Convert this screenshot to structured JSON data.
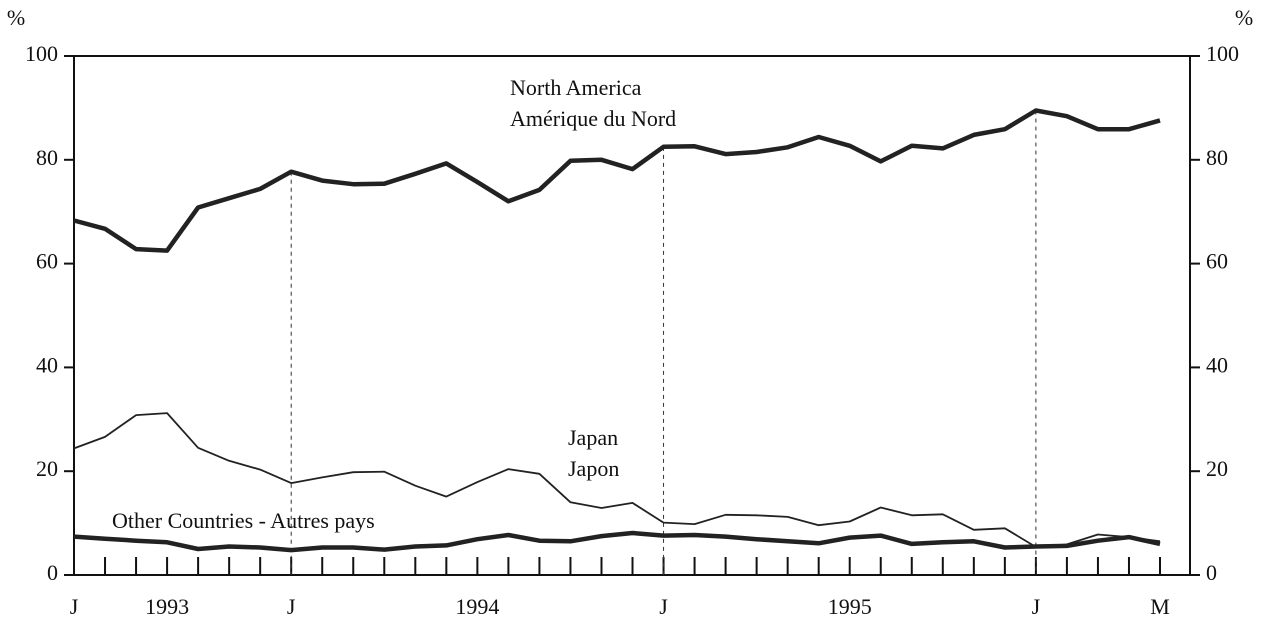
{
  "chart_data": {
    "type": "line",
    "y_unit": "%",
    "categories": [
      "J",
      null,
      null,
      "1993",
      null,
      null,
      null,
      "J",
      null,
      null,
      null,
      null,
      null,
      "1994",
      null,
      null,
      null,
      null,
      null,
      "J",
      null,
      null,
      null,
      null,
      null,
      "1995",
      null,
      null,
      null,
      null,
      null,
      "J",
      null,
      null,
      null,
      "M"
    ],
    "ylim": [
      0,
      100
    ],
    "yticks": [
      0,
      20,
      40,
      60,
      80,
      100
    ],
    "series": [
      {
        "name": "North America",
        "name_alt": "Amérique du Nord",
        "color": "#222222",
        "width": 4.5,
        "values": [
          68.3,
          66.7,
          62.8,
          62.5,
          70.8,
          72.6,
          74.4,
          77.7,
          76.0,
          75.3,
          75.4,
          77.3,
          79.3,
          75.7,
          72.0,
          74.2,
          79.8,
          80.0,
          78.2,
          82.5,
          82.6,
          81.1,
          81.5,
          82.4,
          84.4,
          82.7,
          79.7,
          82.7,
          82.2,
          84.8,
          85.9,
          89.5,
          88.4,
          85.9,
          85.9,
          87.6
        ]
      },
      {
        "name": "Japan",
        "name_alt": "Japon",
        "color": "#222222",
        "width": 1.8,
        "values": [
          24.4,
          26.6,
          30.8,
          31.2,
          24.5,
          22.0,
          20.3,
          17.7,
          18.8,
          19.8,
          19.9,
          17.2,
          15.1,
          17.9,
          20.4,
          19.5,
          14.0,
          12.9,
          13.9,
          10.1,
          9.8,
          11.6,
          11.5,
          11.2,
          9.6,
          10.3,
          13.0,
          11.5,
          11.7,
          8.7,
          9.0,
          5.4,
          5.9,
          7.8,
          7.3,
          6.5
        ]
      },
      {
        "name": "Other Countries - Autres pays",
        "color": "#222222",
        "width": 4.5,
        "values": [
          7.4,
          7.0,
          6.6,
          6.3,
          5.0,
          5.5,
          5.3,
          4.8,
          5.3,
          5.3,
          4.9,
          5.5,
          5.7,
          6.9,
          7.7,
          6.6,
          6.5,
          7.5,
          8.1,
          7.6,
          7.7,
          7.4,
          6.9,
          6.5,
          6.1,
          7.2,
          7.6,
          6.0,
          6.3,
          6.5,
          5.3,
          5.5,
          5.6,
          6.6,
          7.3,
          6.0
        ]
      }
    ]
  }
}
